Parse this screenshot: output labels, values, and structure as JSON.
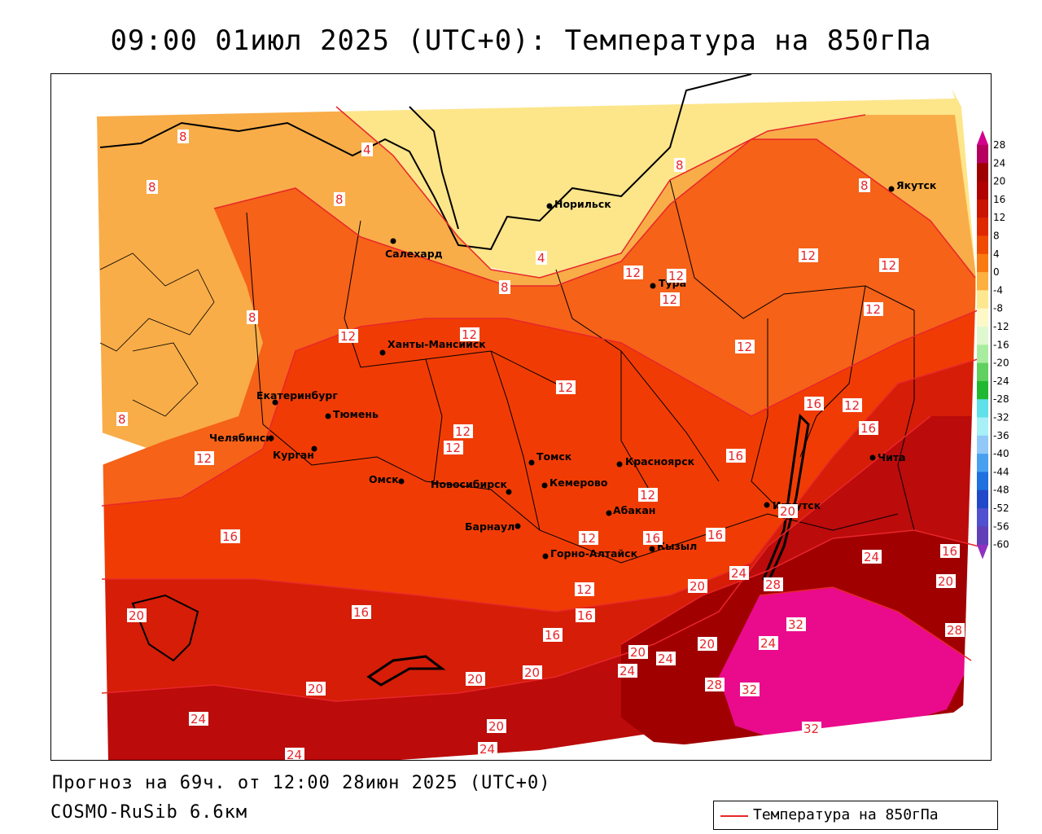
{
  "title": "09:00 01июл 2025 (UTC+0): Температура на 850гПа",
  "forecast_line": "Прогноз на 69ч. от 12:00 28июн 2025 (UTC+0)",
  "model_line": "COSMO-RuSib 6.6км",
  "legend": {
    "label": "Температура на 850гПа",
    "line_color": "#e8262b"
  },
  "colorbar": {
    "ticks": [
      "28",
      "24",
      "20",
      "16",
      "12",
      "8",
      "4",
      "0",
      "-4",
      "-8",
      "-12",
      "-16",
      "-20",
      "-24",
      "-28",
      "-32",
      "-36",
      "-40",
      "-44",
      "-48",
      "-52",
      "-56",
      "-60"
    ],
    "colors": [
      "#b5005d",
      "#9e0000",
      "#b00000",
      "#c81400",
      "#e02800",
      "#f04a00",
      "#f97a10",
      "#fcb040",
      "#fde890",
      "#fdf8c8",
      "#e0f8d0",
      "#a8eca0",
      "#60d060",
      "#20b830",
      "#60e0e8",
      "#a8f0f8",
      "#90c8f8",
      "#4aa0f0",
      "#2070e0",
      "#2048c8",
      "#5050d0",
      "#6040b8",
      "#4020a0",
      "#2000a0",
      "#2a0080"
    ],
    "top_color": "#d2008c",
    "bottom_color": "#9030c0"
  },
  "cities": [
    {
      "name": "Норильск"
    },
    {
      "name": "Якутск"
    },
    {
      "name": "Салехард"
    },
    {
      "name": "Тура"
    },
    {
      "name": "Ханты-Мансийск"
    },
    {
      "name": "Екатеринбург"
    },
    {
      "name": "Тюмень"
    },
    {
      "name": "Челябинск"
    },
    {
      "name": "Курган"
    },
    {
      "name": "Омск"
    },
    {
      "name": "Новосибирск"
    },
    {
      "name": "Томск"
    },
    {
      "name": "Кемерово"
    },
    {
      "name": "Красноярск"
    },
    {
      "name": "Абакан"
    },
    {
      "name": "Барнаул"
    },
    {
      "name": "Горно-Алтайск"
    },
    {
      "name": "Кызыл"
    },
    {
      "name": "Иркутск"
    },
    {
      "name": "Чита"
    }
  ],
  "isotherm_labels": [
    "4",
    "8",
    "12",
    "16",
    "20",
    "24",
    "28",
    "32"
  ],
  "palette": {
    "t32": "#ea0a8c",
    "t28": "#a00000",
    "t24": "#bb0b0b",
    "t20": "#d51d08",
    "t16": "#f03c04",
    "t12": "#f56218",
    "t8": "#f9ad48",
    "t4": "#fde58a",
    "land_outline": "#000000",
    "isotherm": "#e8262b"
  }
}
